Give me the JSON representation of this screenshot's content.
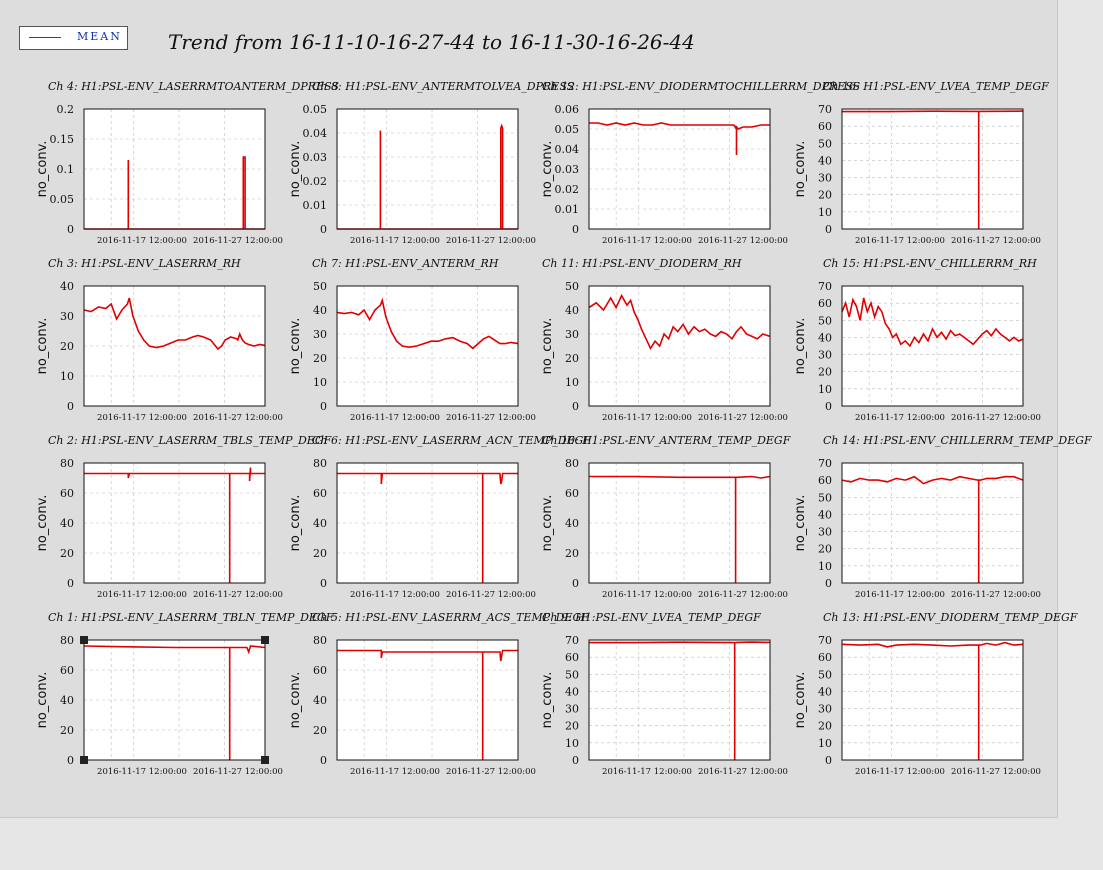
{
  "title": "Trend from 16-11-10-16-27-44 to 16-11-30-16-26-44",
  "legend": {
    "label": "MEAN",
    "color": "#e00000"
  },
  "chart_data": [
    {
      "type": "line",
      "title": "Ch 4: H1:PSL-ENV_LASERRMTOANTERM_DPRESS",
      "ylabel": "no_conv.",
      "ylim": [
        0,
        0.2
      ],
      "yticks": [
        "0",
        "0.05",
        "0.1",
        "0.15",
        "0.2"
      ],
      "xticks": [
        "2016-11-17 12:00:00",
        "2016-11-27 12:00:00"
      ],
      "xlim": [
        0,
        20
      ],
      "grid": true,
      "series": [
        {
          "x": [
            0,
            4.9,
            4.9,
            4.9,
            5.0,
            5.0,
            17.6,
            17.6,
            17.7,
            17.7,
            17.8,
            17.8,
            20
          ],
          "y": [
            0,
            0,
            0.115,
            0,
            0,
            0,
            0,
            0.12,
            0.12,
            0.12,
            0.12,
            0,
            0
          ]
        }
      ]
    },
    {
      "type": "line",
      "title": "Ch 8: H1:PSL-ENV_ANTERMTOLVEA_DPRESS",
      "ylabel": "no_conv.",
      "ylim": [
        0,
        0.05
      ],
      "yticks": [
        "0",
        "0.01",
        "0.02",
        "0.03",
        "0.04",
        "0.05"
      ],
      "xticks": [
        "2016-11-17 12:00:00",
        "2016-11-27 12:00:00"
      ],
      "xlim": [
        0,
        20
      ],
      "grid": true,
      "series": [
        {
          "x": [
            0,
            4.8,
            4.8,
            4.8,
            18.1,
            18.1,
            18.2,
            18.2,
            18.3,
            18.3,
            20
          ],
          "y": [
            0,
            0,
            0.041,
            0,
            0,
            0.042,
            0.043,
            0.043,
            0.042,
            0,
            0
          ]
        }
      ]
    },
    {
      "type": "line",
      "title": "Ch 12: H1:PSL-ENV_DIODERMTOCHILLERRM_DPRESS",
      "ylabel": "no_conv.",
      "ylim": [
        0,
        0.06
      ],
      "yticks": [
        "0",
        "0.01",
        "0.02",
        "0.03",
        "0.04",
        "0.05",
        "0.06"
      ],
      "xticks": [
        "2016-11-17 12:00:00",
        "2016-11-27 12:00:00"
      ],
      "xlim": [
        0,
        20
      ],
      "grid": true,
      "series": [
        {
          "x": [
            0,
            1,
            2,
            3,
            4,
            5,
            6,
            7,
            8,
            9,
            10,
            11,
            12,
            13,
            14,
            15,
            16,
            16.3,
            16.3,
            16.3,
            16.5,
            17,
            18,
            19,
            20
          ],
          "y": [
            0.053,
            0.053,
            0.052,
            0.053,
            0.052,
            0.053,
            0.052,
            0.052,
            0.053,
            0.052,
            0.052,
            0.052,
            0.052,
            0.052,
            0.052,
            0.052,
            0.052,
            0.05,
            0.037,
            0.051,
            0.05,
            0.051,
            0.051,
            0.052,
            0.052
          ]
        }
      ]
    },
    {
      "type": "line",
      "title": "Ch 16: H1:PSL-ENV_LVEA_TEMP_DEGF",
      "ylabel": "no_conv.",
      "ylim": [
        0,
        70
      ],
      "yticks": [
        "0",
        "10",
        "20",
        "30",
        "40",
        "50",
        "60",
        "70"
      ],
      "xticks": [
        "2016-11-17 12:00:00",
        "2016-11-27 12:00:00"
      ],
      "xlim": [
        0,
        20
      ],
      "grid": true,
      "series": [
        {
          "x": [
            0,
            5,
            10,
            15,
            15.1,
            15.1,
            15.1,
            15.2,
            20
          ],
          "y": [
            68.5,
            68.5,
            68.7,
            68.6,
            68.6,
            0,
            68.6,
            68.6,
            68.8
          ]
        }
      ]
    },
    {
      "type": "line",
      "title": "Ch 3: H1:PSL-ENV_LASERRM_RH",
      "ylabel": "no_conv.",
      "ylim": [
        0,
        40
      ],
      "yticks": [
        "0",
        "10",
        "20",
        "30",
        "40"
      ],
      "xticks": [
        "2016-11-17 12:00:00",
        "2016-11-27 12:00:00"
      ],
      "xlim": [
        0,
        20
      ],
      "grid": true,
      "series": [
        {
          "x": [
            0,
            0.8,
            1.6,
            2.4,
            3,
            3.6,
            4.2,
            4.8,
            5,
            5.4,
            6,
            6.6,
            7.2,
            8,
            8.8,
            9.6,
            10.4,
            11.2,
            12,
            12.6,
            13.2,
            14,
            14.8,
            15.2,
            15.6,
            16.2,
            16.8,
            17,
            17.2,
            17.5,
            17.8,
            18.2,
            18.8,
            19.4,
            20
          ],
          "y": [
            32,
            31.5,
            33,
            32.5,
            34,
            29,
            32,
            34,
            36,
            30,
            25,
            22,
            20,
            19.5,
            20,
            21,
            22,
            22,
            23,
            23.5,
            23,
            22,
            19,
            20,
            22,
            23,
            22.5,
            22,
            24,
            22,
            21,
            20.5,
            20,
            20.5,
            20.2
          ]
        }
      ]
    },
    {
      "type": "line",
      "title": "Ch 7: H1:PSL-ENV_ANTERM_RH",
      "ylabel": "no_conv.",
      "ylim": [
        0,
        50
      ],
      "yticks": [
        "0",
        "10",
        "20",
        "30",
        "40",
        "50"
      ],
      "xticks": [
        "2016-11-17 12:00:00",
        "2016-11-27 12:00:00"
      ],
      "xlim": [
        0,
        20
      ],
      "grid": true,
      "series": [
        {
          "x": [
            0,
            0.8,
            1.6,
            2.4,
            3,
            3.6,
            4.2,
            4.8,
            5,
            5.4,
            6,
            6.6,
            7.2,
            8,
            8.8,
            9.6,
            10.4,
            11.2,
            12,
            12.8,
            13.6,
            14.4,
            15,
            15.6,
            16.2,
            16.8,
            17.2,
            17.6,
            18,
            18.6,
            19.2,
            20
          ],
          "y": [
            39,
            38.5,
            39,
            38,
            40,
            36,
            40,
            42,
            44,
            37,
            31,
            27,
            25,
            24.5,
            25,
            26,
            27,
            27,
            28,
            28.5,
            27,
            26,
            24,
            26,
            28,
            29,
            28,
            27,
            26,
            26,
            26.5,
            26
          ]
        }
      ]
    },
    {
      "type": "line",
      "title": "Ch 11: H1:PSL-ENV_DIODERM_RH",
      "ylabel": "no_conv.",
      "ylim": [
        0,
        50
      ],
      "yticks": [
        "0",
        "10",
        "20",
        "30",
        "40",
        "50"
      ],
      "xticks": [
        "2016-11-17 12:00:00",
        "2016-11-27 12:00:00"
      ],
      "xlim": [
        0,
        20
      ],
      "grid": true,
      "series": [
        {
          "x": [
            0,
            0.8,
            1.6,
            2.4,
            3,
            3.6,
            4.2,
            4.6,
            5,
            5.4,
            5.8,
            6.3,
            6.8,
            7.3,
            7.8,
            8.3,
            8.8,
            9.3,
            9.8,
            10.4,
            11,
            11.6,
            12.2,
            12.8,
            13.4,
            14,
            14.6,
            15.2,
            15.8,
            16.3,
            16.8,
            17.4,
            18,
            18.6,
            19.2,
            20
          ],
          "y": [
            41,
            43,
            40,
            45,
            41,
            46,
            42,
            44,
            39,
            36,
            32,
            28,
            24,
            27,
            25,
            30,
            28,
            33,
            31,
            34,
            30,
            33,
            31,
            32,
            30,
            29,
            31,
            30,
            28,
            31,
            33,
            30,
            29,
            28,
            30,
            29
          ]
        }
      ]
    },
    {
      "type": "line",
      "title": "Ch 15: H1:PSL-ENV_CHILLERRM_RH",
      "ylabel": "no_conv.",
      "ylim": [
        0,
        70
      ],
      "yticks": [
        "0",
        "10",
        "20",
        "30",
        "40",
        "50",
        "60",
        "70"
      ],
      "xticks": [
        "2016-11-17 12:00:00",
        "2016-11-27 12:00:00"
      ],
      "xlim": [
        0,
        20
      ],
      "grid": true,
      "series": [
        {
          "x": [
            0,
            0.4,
            0.8,
            1.2,
            1.6,
            2,
            2.4,
            2.8,
            3.2,
            3.6,
            4,
            4.4,
            4.8,
            5.2,
            5.6,
            6,
            6.5,
            7,
            7.5,
            8,
            8.5,
            9,
            9.5,
            10,
            10.5,
            11,
            11.5,
            12,
            12.5,
            13,
            13.5,
            14,
            14.5,
            15,
            15.5,
            16,
            16.5,
            17,
            17.5,
            18,
            18.5,
            19,
            19.5,
            20
          ],
          "y": [
            55,
            60,
            52,
            62,
            58,
            50,
            63,
            55,
            60,
            52,
            58,
            55,
            48,
            45,
            40,
            42,
            36,
            38,
            35,
            40,
            37,
            42,
            38,
            45,
            40,
            43,
            39,
            44,
            41,
            42,
            40,
            38,
            36,
            39,
            42,
            44,
            41,
            45,
            42,
            40,
            38,
            40,
            38,
            39
          ]
        }
      ]
    },
    {
      "type": "line",
      "title": "Ch 2: H1:PSL-ENV_LASERRM_TBLS_TEMP_DEGF",
      "ylabel": "no_conv.",
      "ylim": [
        0,
        80
      ],
      "yticks": [
        "0",
        "20",
        "40",
        "60",
        "80"
      ],
      "xticks": [
        "2016-11-17 12:00:00",
        "2016-11-27 12:00:00"
      ],
      "xlim": [
        0,
        20
      ],
      "grid": true,
      "series": [
        {
          "x": [
            0,
            4.9,
            4.9,
            5,
            10,
            16.1,
            16.1,
            16.1,
            16.2,
            17,
            18.3,
            18.3,
            18.4,
            18.4,
            20
          ],
          "y": [
            73,
            73,
            70,
            73,
            73,
            73,
            0,
            73,
            73,
            73,
            73,
            68,
            77,
            73,
            73
          ]
        }
      ]
    },
    {
      "type": "line",
      "title": "Ch 6: H1:PSL-ENV_LASERRM_ACN_TEMP_DEGF",
      "ylabel": "no_conv.",
      "ylim": [
        0,
        80
      ],
      "yticks": [
        "0",
        "20",
        "40",
        "60",
        "80"
      ],
      "xticks": [
        "2016-11-17 12:00:00",
        "2016-11-27 12:00:00"
      ],
      "xlim": [
        0,
        20
      ],
      "grid": true,
      "series": [
        {
          "x": [
            0,
            4.9,
            4.9,
            5,
            10,
            16.1,
            16.1,
            16.1,
            16.2,
            18,
            18.1,
            18.2,
            18.3,
            20
          ],
          "y": [
            73,
            73,
            66,
            73,
            73,
            73,
            0,
            73,
            73,
            73,
            66,
            68,
            73,
            73
          ]
        }
      ]
    },
    {
      "type": "line",
      "title": "Ch 10: H1:PSL-ENV_ANTERM_TEMP_DEGF",
      "ylabel": "no_conv.",
      "ylim": [
        0,
        80
      ],
      "yticks": [
        "0",
        "20",
        "40",
        "60",
        "80"
      ],
      "xticks": [
        "2016-11-17 12:00:00",
        "2016-11-27 12:00:00"
      ],
      "xlim": [
        0,
        20
      ],
      "grid": true,
      "series": [
        {
          "x": [
            0,
            5,
            10,
            16,
            16.2,
            16.2,
            16.2,
            16.4,
            18,
            19,
            20
          ],
          "y": [
            71,
            71,
            70.5,
            70.5,
            70.5,
            0,
            70.5,
            70.5,
            71,
            70,
            71
          ]
        }
      ]
    },
    {
      "type": "line",
      "title": "Ch 14: H1:PSL-ENV_CHILLERRM_TEMP_DEGF",
      "ylabel": "no_conv.",
      "ylim": [
        0,
        70
      ],
      "yticks": [
        "0",
        "10",
        "20",
        "30",
        "40",
        "50",
        "60",
        "70"
      ],
      "xticks": [
        "2016-11-17 12:00:00",
        "2016-11-27 12:00:00"
      ],
      "xlim": [
        0,
        20
      ],
      "grid": true,
      "series": [
        {
          "x": [
            0,
            1,
            2,
            3,
            4,
            5,
            6,
            7,
            8,
            9,
            10,
            11,
            12,
            13,
            14,
            15,
            15.1,
            15.1,
            15.1,
            15.3,
            16,
            17,
            18,
            19,
            20
          ],
          "y": [
            60,
            59,
            61,
            60,
            60,
            59,
            61,
            60,
            62,
            58,
            60,
            61,
            60,
            62,
            61,
            60,
            60,
            0,
            60,
            60,
            61,
            61,
            62,
            62,
            60
          ]
        }
      ]
    },
    {
      "type": "line",
      "title": "Ch 1: H1:PSL-ENV_LASERRM_TBLN_TEMP_DEGF",
      "ylabel": "no_conv.",
      "ylim": [
        0,
        80
      ],
      "yticks": [
        "0",
        "20",
        "40",
        "60",
        "80"
      ],
      "xticks": [
        "2016-11-17 12:00:00",
        "2016-11-27 12:00:00"
      ],
      "xlim": [
        0,
        20
      ],
      "grid": true,
      "series": [
        {
          "x": [
            0,
            5,
            10,
            16.1,
            16.1,
            16.1,
            16.2,
            17,
            18,
            18.2,
            18.4,
            20
          ],
          "y": [
            76,
            75.5,
            75,
            75,
            0,
            75,
            75,
            75,
            75,
            72,
            76,
            75
          ]
        }
      ]
    },
    {
      "type": "line",
      "title": "Ch 5: H1:PSL-ENV_LASERRM_ACS_TEMP_DEGF",
      "ylabel": "no_conv.",
      "ylim": [
        0,
        80
      ],
      "yticks": [
        "0",
        "20",
        "40",
        "60",
        "80"
      ],
      "xticks": [
        "2016-11-17 12:00:00",
        "2016-11-27 12:00:00"
      ],
      "xlim": [
        0,
        20
      ],
      "grid": true,
      "series": [
        {
          "x": [
            0,
            4.9,
            4.9,
            5,
            10,
            16.1,
            16.1,
            16.1,
            16.2,
            18,
            18.1,
            18.3,
            20
          ],
          "y": [
            73,
            73,
            68,
            72,
            72,
            72,
            0,
            72,
            72,
            72,
            66,
            73,
            73
          ]
        }
      ]
    },
    {
      "type": "line",
      "title": "Ch 9: H1:PSL-ENV_LVEA_TEMP_DEGF",
      "ylabel": "no_conv.",
      "ylim": [
        0,
        70
      ],
      "yticks": [
        "0",
        "10",
        "20",
        "30",
        "40",
        "50",
        "60",
        "70"
      ],
      "xticks": [
        "2016-11-17 12:00:00",
        "2016-11-27 12:00:00"
      ],
      "xlim": [
        0,
        20
      ],
      "grid": true,
      "series": [
        {
          "x": [
            0,
            5,
            10,
            16.1,
            16.1,
            16.1,
            16.3,
            18,
            20
          ],
          "y": [
            68.5,
            68.5,
            68.7,
            68.5,
            0,
            68.5,
            68.6,
            68.8,
            68.6
          ]
        }
      ]
    },
    {
      "type": "line",
      "title": "Ch 13: H1:PSL-ENV_DIODERM_TEMP_DEGF",
      "ylabel": "no_conv.",
      "ylim": [
        0,
        70
      ],
      "yticks": [
        "0",
        "10",
        "20",
        "30",
        "40",
        "50",
        "60",
        "70"
      ],
      "xticks": [
        "2016-11-17 12:00:00",
        "2016-11-27 12:00:00"
      ],
      "xlim": [
        0,
        20
      ],
      "grid": true,
      "series": [
        {
          "x": [
            0,
            2,
            4,
            5,
            6,
            8,
            10,
            12,
            14,
            15.1,
            15.1,
            15.1,
            15.3,
            16,
            17,
            18,
            19,
            20
          ],
          "y": [
            67.5,
            67,
            67.5,
            66,
            67,
            67.5,
            67,
            66.5,
            67,
            67,
            0,
            67,
            67,
            68,
            67,
            68.5,
            67,
            67.5
          ]
        }
      ]
    }
  ]
}
